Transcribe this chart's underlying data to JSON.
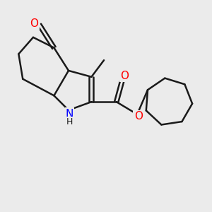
{
  "background_color": "#ebebeb",
  "bond_color": "#1a1a1a",
  "bond_width": 1.8,
  "N_color": "#0000ff",
  "O_color": "#ff0000",
  "figsize": [
    3.0,
    3.0
  ],
  "dpi": 100,
  "xlim": [
    0,
    10
  ],
  "ylim": [
    0,
    10
  ]
}
